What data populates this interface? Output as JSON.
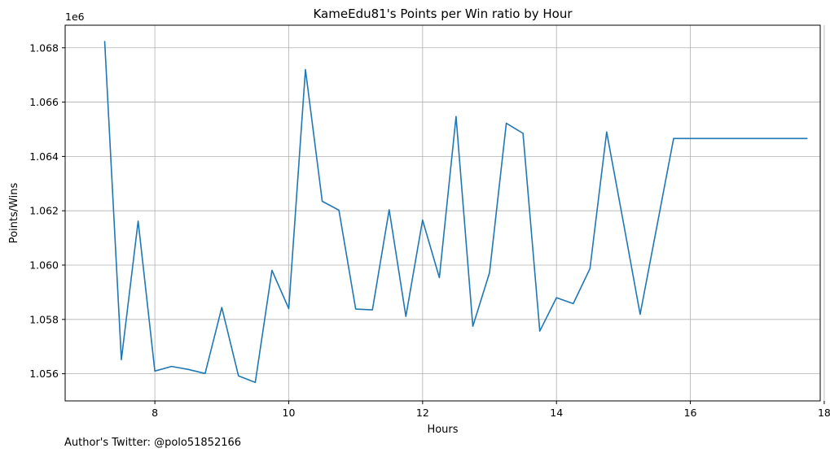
{
  "chart_data": {
    "type": "line",
    "title": "KameEdu81's Points per Win ratio by Hour",
    "xlabel": "Hours",
    "ylabel": "Points/Wins",
    "y_offset_label": "1e6",
    "xlim": [
      6.66,
      17.94
    ],
    "ylim": [
      1055001,
      1068831
    ],
    "x_ticks": [
      8,
      10,
      12,
      14,
      16,
      18
    ],
    "x_tick_labels": [
      "8",
      "10",
      "12",
      "14",
      "16",
      "18"
    ],
    "y_ticks": [
      1056000,
      1058000,
      1060000,
      1062000,
      1064000,
      1066000,
      1068000
    ],
    "y_tick_labels": [
      "1.056",
      "1.058",
      "1.060",
      "1.062",
      "1.064",
      "1.066",
      "1.068"
    ],
    "grid": true,
    "line_color": "#1f77b4",
    "series": [
      {
        "x": [
          7.25,
          7.5,
          7.75,
          8.0,
          8.25,
          8.5,
          8.75,
          9.0,
          9.25,
          9.5,
          9.75,
          10.0,
          10.25,
          10.5,
          10.75,
          11.0,
          11.25,
          11.5,
          11.75,
          12.0,
          12.25,
          12.5,
          12.75,
          13.0,
          13.25,
          13.5,
          13.75,
          14.0,
          14.25,
          14.5,
          14.75,
          15.0,
          15.25,
          15.5,
          15.75,
          16.0,
          16.25,
          16.5,
          16.75,
          17.0,
          17.25,
          17.5,
          17.75
        ],
        "y": [
          1068250,
          1056520,
          1061620,
          1056100,
          1056270,
          1056160,
          1056010,
          1058440,
          1055920,
          1055680,
          1059810,
          1058400,
          1067200,
          1062350,
          1062020,
          1058380,
          1058350,
          1062040,
          1058110,
          1061660,
          1059540,
          1065470,
          1057750,
          1059720,
          1065220,
          1064850,
          1057570,
          1058800,
          1058580,
          1059870,
          1064900,
          1061560,
          1058190,
          1061430,
          1064660,
          1064660,
          1064660,
          1064660,
          1064660,
          1064660,
          1064660,
          1064660,
          1064660
        ]
      }
    ]
  },
  "footer_text": "Author's Twitter: @polo51852166"
}
